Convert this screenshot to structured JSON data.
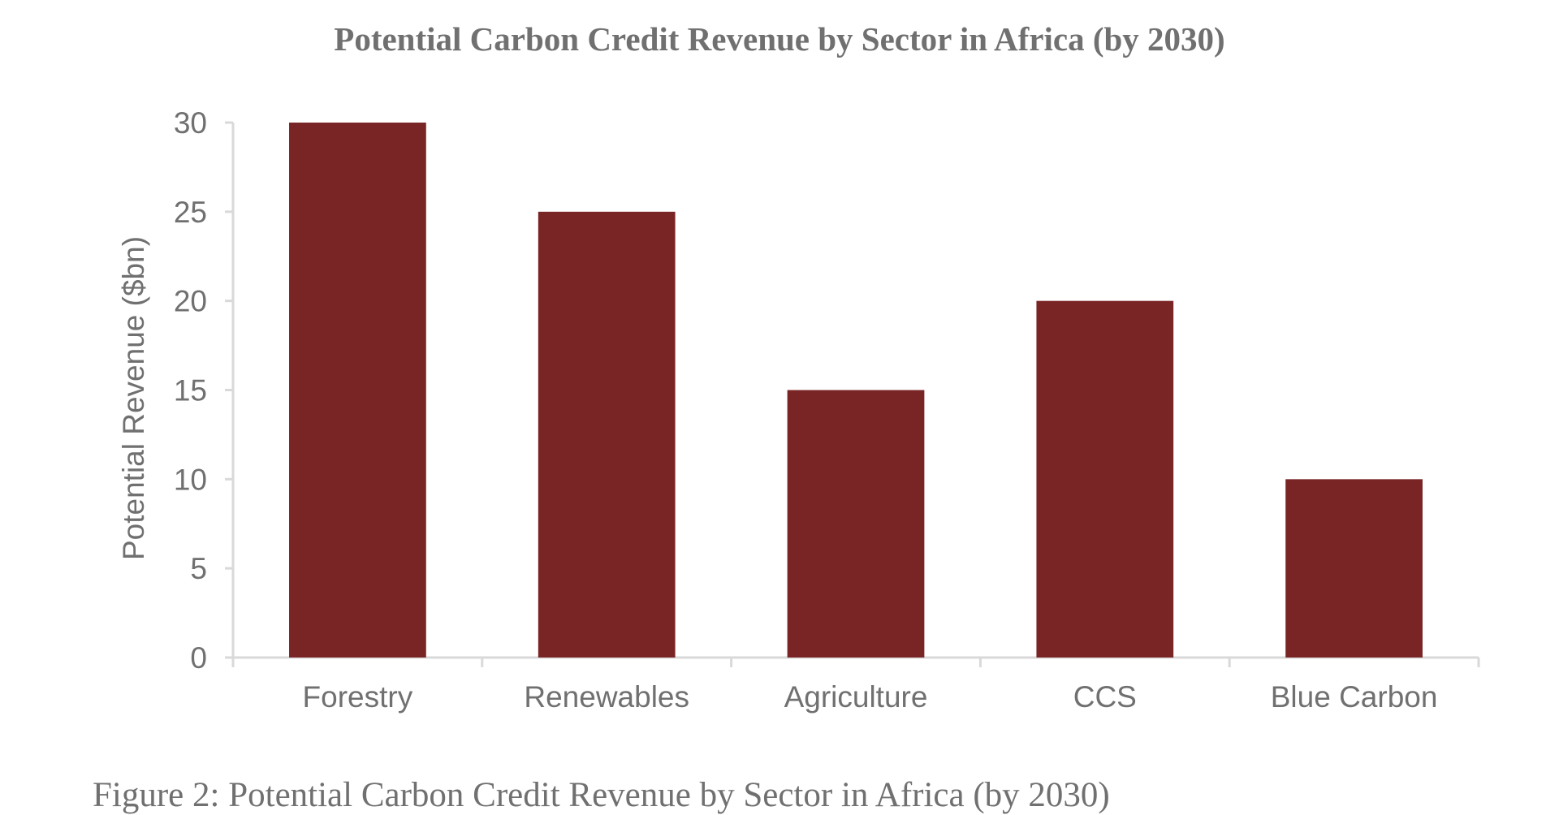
{
  "chart_data": {
    "type": "bar",
    "title": "Potential Carbon Credit Revenue by Sector in Africa (by 2030)",
    "categories": [
      "Forestry",
      "Renewables",
      "Agriculture",
      "CCS",
      "Blue Carbon"
    ],
    "values": [
      30,
      25,
      15,
      20,
      10
    ],
    "xlabel": "",
    "ylabel": "Potential Revenue ($bn)",
    "ylim": [
      0,
      30
    ],
    "yticks": [
      0,
      5,
      10,
      15,
      20,
      25,
      30
    ],
    "grid": false,
    "legend": "none",
    "bar_color": "#7a2525"
  },
  "caption": "Figure 2: Potential Carbon Credit Revenue by Sector in Africa (by 2030)"
}
